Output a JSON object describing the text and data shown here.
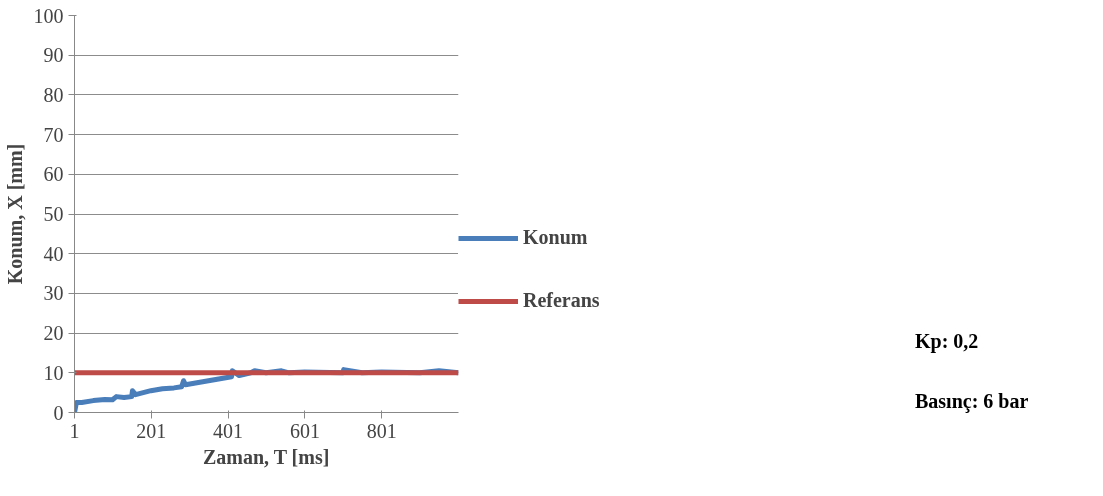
{
  "chart_data": {
    "type": "line",
    "xlabel": "Zaman, T [ms]",
    "ylabel": "Konum, X [mm]",
    "xlim": [
      1,
      1001
    ],
    "xticks": [
      1,
      201,
      401,
      601,
      801
    ],
    "ylim": [
      0,
      100
    ],
    "yticks": [
      0,
      10,
      20,
      30,
      40,
      50,
      60,
      70,
      80,
      90,
      100
    ],
    "grid": "y",
    "legend": "right",
    "line_style": "solid",
    "marker": "none",
    "annotations": [
      "Kp: 0,2",
      "Basınç: 6 bar"
    ],
    "series": [
      {
        "name": "Konum",
        "color": "#4a7ebb",
        "x": [
          1,
          6,
          20,
          50,
          80,
          100,
          110,
          130,
          150,
          152,
          160,
          200,
          230,
          260,
          280,
          285,
          290,
          320,
          350,
          380,
          410,
          412,
          430,
          460,
          470,
          500,
          540,
          560,
          600,
          700,
          702,
          750,
          800,
          900,
          950,
          1001
        ],
        "values": [
          0,
          2.5,
          2.5,
          3,
          3.3,
          3.2,
          4,
          3.8,
          4,
          5.5,
          4.5,
          5.5,
          6,
          6.2,
          6.5,
          8,
          7,
          7.5,
          8,
          8.5,
          9,
          10.5,
          9.3,
          10,
          10.5,
          10,
          10.5,
          10,
          10.2,
          10,
          10.8,
          10,
          10.2,
          10,
          10.5,
          10
        ]
      },
      {
        "name": "Referans",
        "color": "#be4b48",
        "x": [
          1,
          1001
        ],
        "values": [
          10,
          10
        ]
      }
    ]
  }
}
